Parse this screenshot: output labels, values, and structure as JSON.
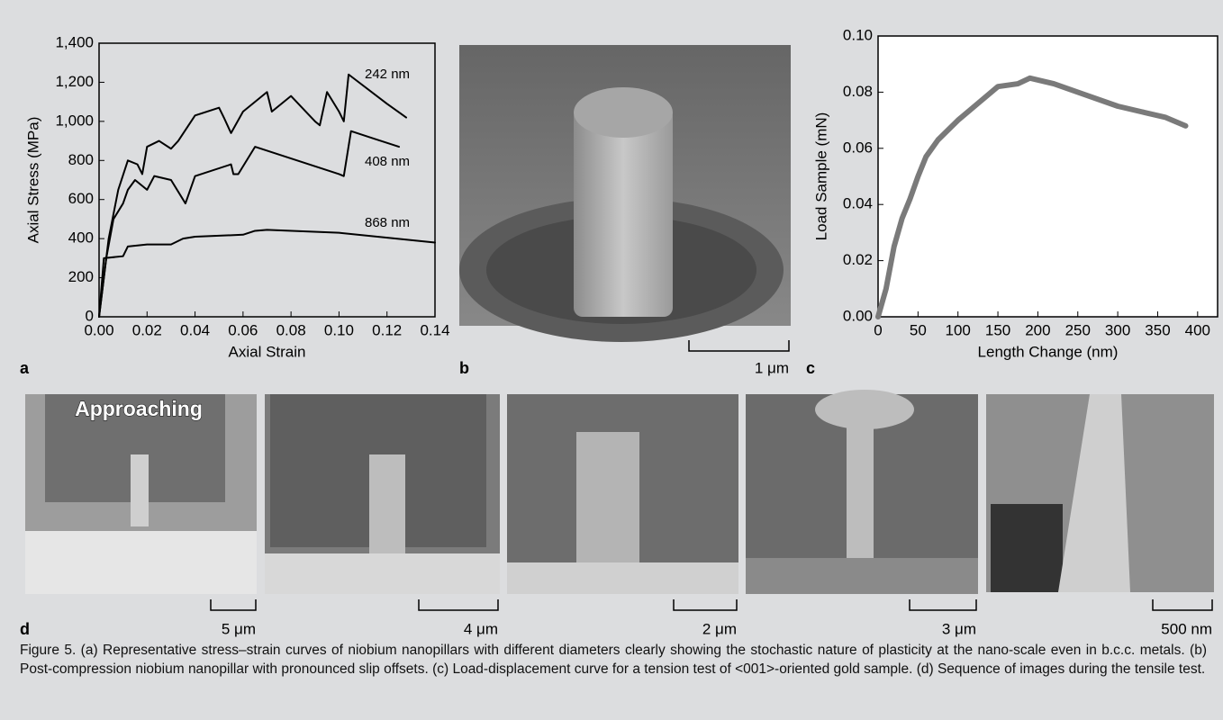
{
  "chart_data": [
    {
      "type": "line",
      "xlabel": "Axial Strain",
      "ylabel": "Axial Stress (MPa)",
      "xlim": [
        0,
        0.14
      ],
      "ylim": [
        0,
        1400
      ],
      "xticks": [
        {
          "value": 0,
          "label": "0.00"
        },
        {
          "value": 0.02,
          "label": "0.02"
        },
        {
          "value": 0.04,
          "label": "0.04"
        },
        {
          "value": 0.06,
          "label": "0.06"
        },
        {
          "value": 0.08,
          "label": "0.08"
        },
        {
          "value": 0.1,
          "label": "0.10"
        },
        {
          "value": 0.12,
          "label": "0.12"
        },
        {
          "value": 0.14,
          "label": "0.14"
        }
      ],
      "yticks": [
        0,
        200,
        400,
        600,
        800,
        {
          "value": 1000,
          "label": "1,000"
        },
        {
          "value": 1200,
          "label": "1,200"
        },
        {
          "value": 1400,
          "label": "1,400"
        }
      ],
      "series": [
        {
          "name": "242 nm",
          "color": "#000000",
          "x": [
            0,
            0.004,
            0.008,
            0.012,
            0.016,
            0.018,
            0.02,
            0.025,
            0.03,
            0.033,
            0.04,
            0.05,
            0.052,
            0.055,
            0.06,
            0.07,
            0.072,
            0.08,
            0.09,
            0.092,
            0.095,
            0.1,
            0.102,
            0.104,
            0.12,
            0.128
          ],
          "values": [
            0,
            400,
            650,
            800,
            780,
            730,
            870,
            900,
            860,
            900,
            1030,
            1070,
            1020,
            940,
            1050,
            1150,
            1050,
            1130,
            1000,
            980,
            1150,
            1050,
            1000,
            1240,
            1090,
            1020
          ]
        },
        {
          "name": "408 nm",
          "color": "#000000",
          "x": [
            0,
            0.003,
            0.006,
            0.01,
            0.012,
            0.015,
            0.02,
            0.023,
            0.03,
            0.036,
            0.04,
            0.055,
            0.056,
            0.058,
            0.065,
            0.1,
            0.102,
            0.105,
            0.115,
            0.125
          ],
          "values": [
            0,
            300,
            500,
            580,
            650,
            700,
            650,
            720,
            700,
            580,
            720,
            780,
            730,
            730,
            870,
            730,
            720,
            950,
            910,
            870
          ]
        },
        {
          "name": "868 nm",
          "color": "#000000",
          "x": [
            0,
            0.002,
            0.01,
            0.012,
            0.02,
            0.03,
            0.035,
            0.04,
            0.06,
            0.065,
            0.07,
            0.1,
            0.14
          ],
          "values": [
            0,
            300,
            310,
            360,
            370,
            370,
            400,
            410,
            420,
            440,
            445,
            430,
            380
          ]
        }
      ]
    },
    {
      "type": "line",
      "xlabel": "Length Change (nm)",
      "ylabel": "Load Sample (mN)",
      "xlim": [
        0,
        425
      ],
      "ylim": [
        0,
        0.1
      ],
      "xticks": [
        0,
        50,
        100,
        150,
        200,
        250,
        300,
        350,
        400
      ],
      "yticks": [
        {
          "value": 0,
          "label": "0.00"
        },
        {
          "value": 0.02,
          "label": "0.02"
        },
        {
          "value": 0.04,
          "label": "0.04"
        },
        {
          "value": 0.06,
          "label": "0.06"
        },
        {
          "value": 0.08,
          "label": "0.08"
        },
        {
          "value": 0.1,
          "label": "0.10"
        }
      ],
      "series": [
        {
          "color": "#7a7a7a",
          "x": [
            0,
            10,
            20,
            30,
            40,
            50,
            60,
            75,
            100,
            125,
            150,
            175,
            190,
            220,
            250,
            300,
            330,
            360,
            385
          ],
          "values": [
            0,
            0.01,
            0.025,
            0.035,
            0.042,
            0.05,
            0.057,
            0.063,
            0.07,
            0.076,
            0.082,
            0.083,
            0.085,
            0.083,
            0.08,
            0.075,
            0.073,
            0.071,
            0.068
          ]
        }
      ]
    }
  ],
  "panels": {
    "a": "a",
    "b": "b",
    "c": "c",
    "d": "d"
  },
  "scale_bars": {
    "b": "1 μm",
    "d1": "5 μm",
    "d2": "4 μm",
    "d3": "2 μm",
    "d4": "3 μm",
    "d5": "500 nm"
  },
  "image_label": "Approaching",
  "caption": "Figure 5. (a) Representative stress–strain curves of niobium nanopillars with different diameters clearly showing the stochastic nature of plasticity at the nano-scale even in b.c.c. metals. (b) Post-compression niobium nanopillar with pronounced slip offsets. (c) Load-displacement curve for a tension test of <001>-oriented gold sample. (d) Sequence of images during the tensile test."
}
